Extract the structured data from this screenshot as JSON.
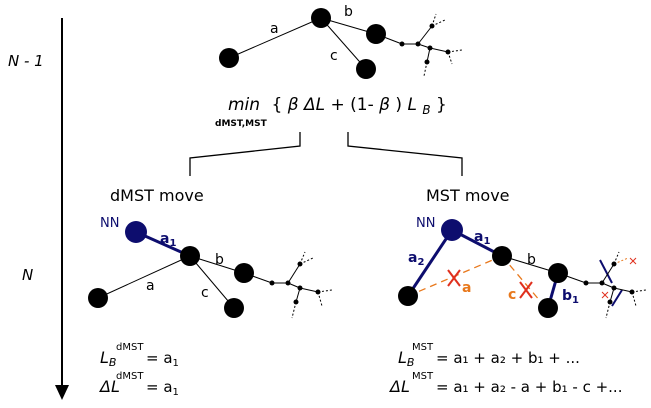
{
  "axis": {
    "top_label": "N - 1",
    "bottom_label": "N"
  },
  "top_graph": {
    "edge_a": "a",
    "edge_b": "b",
    "edge_c": "c"
  },
  "objective": {
    "min_word": "min",
    "sub": "dMST,MST",
    "expr_open": "{ ",
    "beta": "β",
    "delta_l": " ΔL ",
    "plus": "+ (1-",
    "beta2": "β",
    "close_paren": ") ",
    "l_symbol": "L",
    "l_sub": "B",
    "expr_close": " }"
  },
  "left_panel": {
    "title": "dMST move",
    "nn": "NN",
    "a1": "a",
    "a1_sub": "1",
    "edge_a": "a",
    "edge_b": "b",
    "edge_c": "c",
    "eq1_lhs": "L",
    "eq1_sub": "B",
    "eq1_sup": "dMST",
    "eq1_rhs": "= a",
    "eq1_rhs_sub": "1",
    "eq2_lhs": "ΔL",
    "eq2_sup": "dMST",
    "eq2_rhs": "= a",
    "eq2_rhs_sub": "1"
  },
  "right_panel": {
    "title": "MST move",
    "nn": "NN",
    "a1": "a",
    "a1_sub": "1",
    "a2": "a",
    "a2_sub": "2",
    "b1": "b",
    "b1_sub": "1",
    "edge_a": "a",
    "edge_b": "b",
    "edge_c": "c",
    "eq1_lhs": "L",
    "eq1_sub": "B",
    "eq1_sup": "MST",
    "eq1_rhs": "= a₁ + a₂ + b₁ + ...",
    "eq2_lhs": "ΔL",
    "eq2_sup": "MST",
    "eq2_rhs": "= a₁ + a₂ - a + b₁ - c +..."
  },
  "colors": {
    "navy": "#0d0d6e",
    "orange": "#e8781c",
    "red": "#e0301e"
  }
}
